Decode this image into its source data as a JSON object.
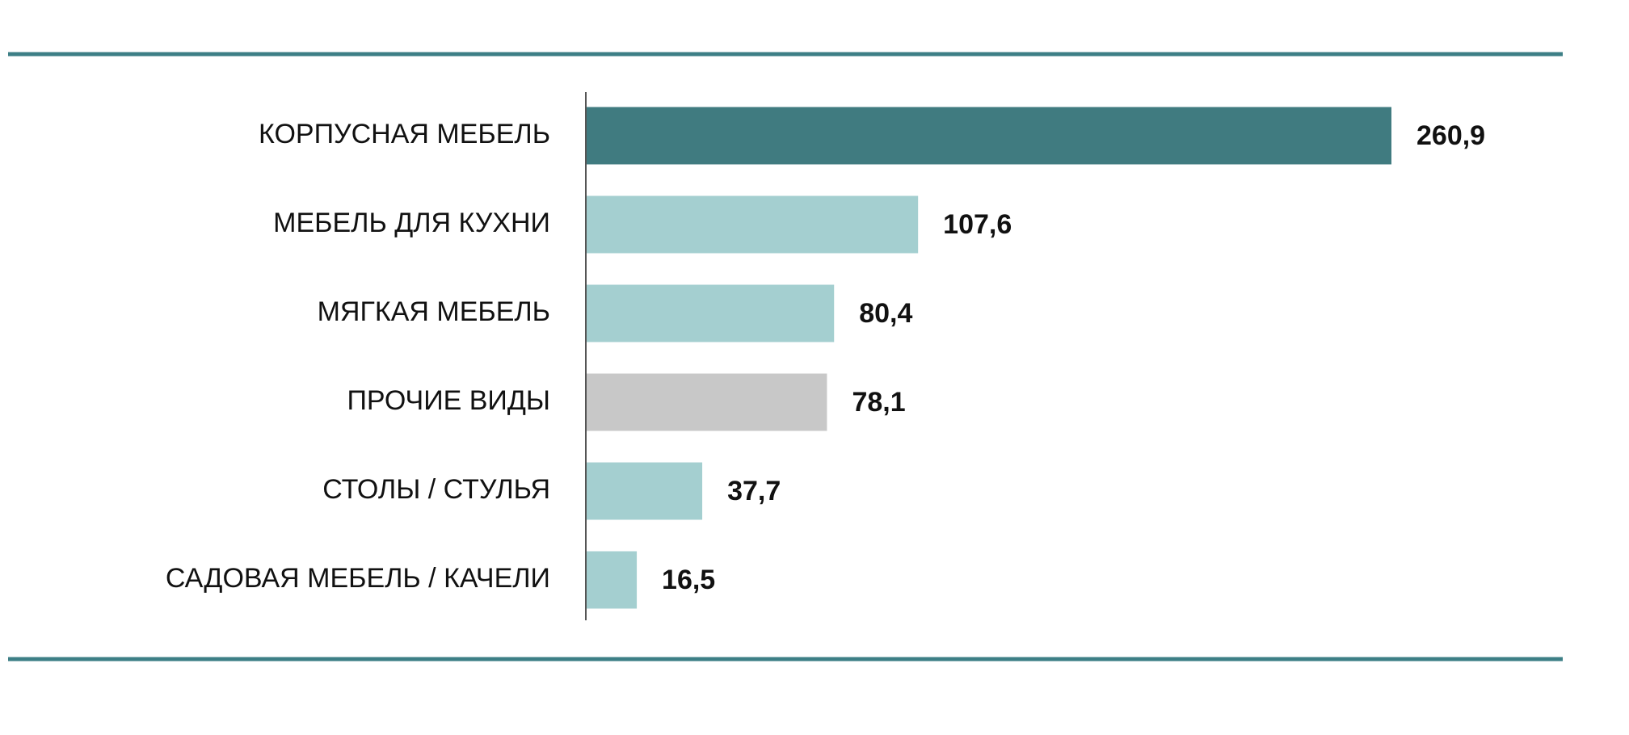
{
  "chart_data": {
    "type": "barh",
    "categories": [
      "КОРПУСНАЯ МЕБЕЛЬ",
      "МЕБЕЛЬ ДЛЯ КУХНИ",
      "МЯГКАЯ МЕБЕЛЬ",
      "ПРОЧИЕ ВИДЫ",
      "СТОЛЫ / СТУЛЬЯ",
      "САДОВАЯ МЕБЕЛЬ / КАЧЕЛИ"
    ],
    "values": [
      260.9,
      107.6,
      80.4,
      78.1,
      37.7,
      16.5
    ],
    "value_labels": [
      "260,9",
      "107,6",
      "80,4",
      "78,1",
      "37,7",
      "16,5"
    ],
    "colors": [
      "#407b80",
      "#a4cfd0",
      "#a4cfd0",
      "#c8c8c8",
      "#a4cfd0",
      "#a4cfd0"
    ]
  }
}
